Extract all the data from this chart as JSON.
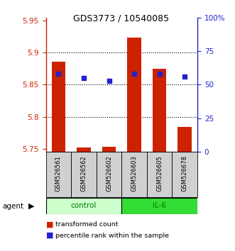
{
  "title": "GDS3773 / 10540085",
  "samples": [
    "GSM526561",
    "GSM526562",
    "GSM526602",
    "GSM526603",
    "GSM526605",
    "GSM526678"
  ],
  "red_values": [
    5.886,
    5.752,
    5.753,
    5.924,
    5.875,
    5.784
  ],
  "blue_values": [
    58,
    55,
    53,
    58,
    58,
    56
  ],
  "ylim_left": [
    5.745,
    5.955
  ],
  "ylim_right": [
    0,
    100
  ],
  "yticks_left": [
    5.75,
    5.8,
    5.85,
    5.9,
    5.95
  ],
  "yticks_right": [
    0,
    25,
    50,
    75,
    100
  ],
  "ytick_labels_right": [
    "0",
    "25",
    "50",
    "75",
    "100%"
  ],
  "bar_color": "#cc2200",
  "dot_color": "#2222cc",
  "control_color": "#ccffcc",
  "il6_color": "#33dd33",
  "group_label_color": "#007700",
  "bar_width": 0.55,
  "baseline": 5.745,
  "legend_items": [
    "transformed count",
    "percentile rank within the sample"
  ],
  "agent_label": "agent",
  "grid_lines": [
    5.9,
    5.85,
    5.8
  ]
}
